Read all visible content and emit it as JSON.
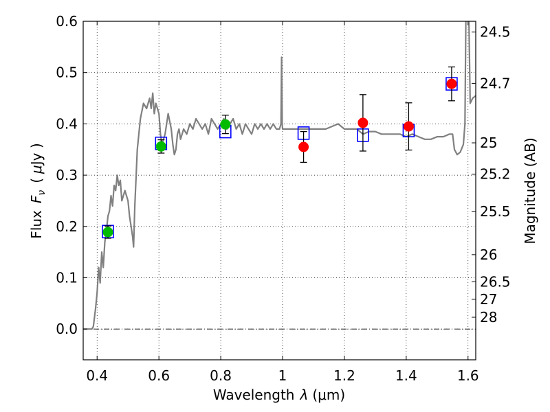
{
  "chart_data": {
    "type": "scatter",
    "xlabel_text": "Wavelength",
    "xlabel_symbol": "λ",
    "xlabel_unit": "(μm)",
    "ylabel_left_text": "Flux",
    "ylabel_left_symbol": "F",
    "ylabel_left_subscript": "ν",
    "ylabel_left_unit_open": "(",
    "ylabel_left_unit_mu": "μ",
    "ylabel_left_unit_rest": "Jy )",
    "ylabel_right": "Magnitude (AB)",
    "xlim": [
      0.355,
      1.625
    ],
    "ylim": [
      -0.06,
      0.6
    ],
    "grid": true,
    "x_ticks": [
      0.4,
      0.6,
      0.8,
      1.0,
      1.2,
      1.4,
      1.6
    ],
    "x_tick_labels": [
      "0.4",
      "0.6",
      "0.8",
      "1",
      "1.2",
      "1.4",
      "1.6"
    ],
    "y_ticks": [
      0.0,
      0.1,
      0.2,
      0.3,
      0.4,
      0.5,
      0.6
    ],
    "y_tick_labels": [
      "0.0",
      "0.1",
      "0.2",
      "0.3",
      "0.4",
      "0.5",
      "0.6"
    ],
    "right_ticks": [
      {
        "label": "24.5",
        "flux": 0.579
      },
      {
        "label": "24.7",
        "flux": 0.479
      },
      {
        "label": "25",
        "flux": 0.363
      },
      {
        "label": "25.2",
        "flux": 0.302
      },
      {
        "label": "25.5",
        "flux": 0.229
      },
      {
        "label": "26",
        "flux": 0.145
      },
      {
        "label": "26.5",
        "flux": 0.092
      },
      {
        "label": "27",
        "flux": 0.058
      },
      {
        "label": "28",
        "flux": 0.023
      }
    ],
    "series": [
      {
        "name": "model_sed",
        "style": "line",
        "color": "#808080",
        "points": [
          [
            0.355,
            0.0
          ],
          [
            0.383,
            0.0
          ],
          [
            0.388,
            0.005
          ],
          [
            0.395,
            0.04
          ],
          [
            0.4,
            0.07
          ],
          [
            0.405,
            0.12
          ],
          [
            0.41,
            0.09
          ],
          [
            0.415,
            0.15
          ],
          [
            0.42,
            0.12
          ],
          [
            0.425,
            0.17
          ],
          [
            0.43,
            0.19
          ],
          [
            0.435,
            0.22
          ],
          [
            0.44,
            0.23
          ],
          [
            0.445,
            0.26
          ],
          [
            0.45,
            0.24
          ],
          [
            0.455,
            0.28
          ],
          [
            0.46,
            0.27
          ],
          [
            0.465,
            0.3
          ],
          [
            0.47,
            0.28
          ],
          [
            0.475,
            0.29
          ],
          [
            0.48,
            0.25
          ],
          [
            0.49,
            0.27
          ],
          [
            0.5,
            0.25
          ],
          [
            0.505,
            0.22
          ],
          [
            0.51,
            0.2
          ],
          [
            0.515,
            0.18
          ],
          [
            0.518,
            0.16
          ],
          [
            0.522,
            0.24
          ],
          [
            0.53,
            0.35
          ],
          [
            0.54,
            0.41
          ],
          [
            0.55,
            0.44
          ],
          [
            0.56,
            0.43
          ],
          [
            0.57,
            0.45
          ],
          [
            0.575,
            0.43
          ],
          [
            0.58,
            0.46
          ],
          [
            0.585,
            0.42
          ],
          [
            0.59,
            0.44
          ],
          [
            0.6,
            0.42
          ],
          [
            0.605,
            0.38
          ],
          [
            0.61,
            0.36
          ],
          [
            0.62,
            0.38
          ],
          [
            0.63,
            0.42
          ],
          [
            0.64,
            0.39
          ],
          [
            0.645,
            0.36
          ],
          [
            0.65,
            0.34
          ],
          [
            0.655,
            0.35
          ],
          [
            0.66,
            0.38
          ],
          [
            0.665,
            0.39
          ],
          [
            0.67,
            0.37
          ],
          [
            0.68,
            0.39
          ],
          [
            0.69,
            0.38
          ],
          [
            0.7,
            0.4
          ],
          [
            0.71,
            0.39
          ],
          [
            0.72,
            0.41
          ],
          [
            0.73,
            0.4
          ],
          [
            0.74,
            0.39
          ],
          [
            0.75,
            0.4
          ],
          [
            0.76,
            0.38
          ],
          [
            0.77,
            0.41
          ],
          [
            0.78,
            0.4
          ],
          [
            0.79,
            0.39
          ],
          [
            0.8,
            0.4
          ],
          [
            0.81,
            0.41
          ],
          [
            0.82,
            0.39
          ],
          [
            0.83,
            0.4
          ],
          [
            0.84,
            0.41
          ],
          [
            0.85,
            0.39
          ],
          [
            0.86,
            0.4
          ],
          [
            0.87,
            0.38
          ],
          [
            0.88,
            0.4
          ],
          [
            0.89,
            0.39
          ],
          [
            0.9,
            0.38
          ],
          [
            0.91,
            0.4
          ],
          [
            0.92,
            0.39
          ],
          [
            0.93,
            0.4
          ],
          [
            0.94,
            0.39
          ],
          [
            0.95,
            0.4
          ],
          [
            0.96,
            0.39
          ],
          [
            0.97,
            0.4
          ],
          [
            0.98,
            0.39
          ],
          [
            0.99,
            0.39
          ],
          [
            0.995,
            0.4
          ],
          [
            0.997,
            0.53
          ],
          [
            0.999,
            0.4
          ],
          [
            1.0,
            0.39
          ],
          [
            1.02,
            0.39
          ],
          [
            1.04,
            0.39
          ],
          [
            1.06,
            0.39
          ],
          [
            1.08,
            0.39
          ],
          [
            1.1,
            0.39
          ],
          [
            1.12,
            0.39
          ],
          [
            1.14,
            0.39
          ],
          [
            1.16,
            0.395
          ],
          [
            1.18,
            0.4
          ],
          [
            1.2,
            0.39
          ],
          [
            1.22,
            0.39
          ],
          [
            1.24,
            0.39
          ],
          [
            1.26,
            0.38
          ],
          [
            1.28,
            0.385
          ],
          [
            1.3,
            0.385
          ],
          [
            1.32,
            0.38
          ],
          [
            1.34,
            0.38
          ],
          [
            1.36,
            0.38
          ],
          [
            1.38,
            0.38
          ],
          [
            1.4,
            0.375
          ],
          [
            1.42,
            0.38
          ],
          [
            1.44,
            0.375
          ],
          [
            1.46,
            0.37
          ],
          [
            1.48,
            0.37
          ],
          [
            1.5,
            0.375
          ],
          [
            1.52,
            0.375
          ],
          [
            1.54,
            0.38
          ],
          [
            1.55,
            0.38
          ],
          [
            1.556,
            0.35
          ],
          [
            1.565,
            0.34
          ],
          [
            1.575,
            0.345
          ],
          [
            1.585,
            0.36
          ],
          [
            1.59,
            0.4
          ],
          [
            1.593,
            0.6
          ]
        ]
      },
      {
        "name": "model_line_tail",
        "style": "line",
        "color": "#808080",
        "points": [
          [
            1.603,
            0.6
          ],
          [
            1.607,
            0.44
          ],
          [
            1.615,
            0.45
          ],
          [
            1.625,
            0.455
          ]
        ]
      },
      {
        "name": "synthetic_photometry",
        "style": "open-square",
        "color": "#0000ff",
        "points": [
          [
            0.435,
            0.19
          ],
          [
            0.607,
            0.362
          ],
          [
            0.815,
            0.385
          ],
          [
            1.068,
            0.382
          ],
          [
            1.26,
            0.378
          ],
          [
            1.408,
            0.387
          ],
          [
            1.547,
            0.478
          ]
        ]
      },
      {
        "name": "observed_optical",
        "style": "filled-circle",
        "color": "#00bb00",
        "points": [
          [
            0.435,
            0.189
          ],
          [
            0.607,
            0.356
          ],
          [
            0.815,
            0.399
          ]
        ],
        "errors": [
          0.012,
          0.013,
          0.018
        ]
      },
      {
        "name": "observed_nir",
        "style": "filled-circle",
        "color": "#ff0000",
        "points": [
          [
            1.068,
            0.355
          ],
          [
            1.26,
            0.402
          ],
          [
            1.408,
            0.395
          ],
          [
            1.547,
            0.478
          ]
        ],
        "errors": [
          0.03,
          0.055,
          0.046,
          0.033
        ]
      }
    ]
  }
}
